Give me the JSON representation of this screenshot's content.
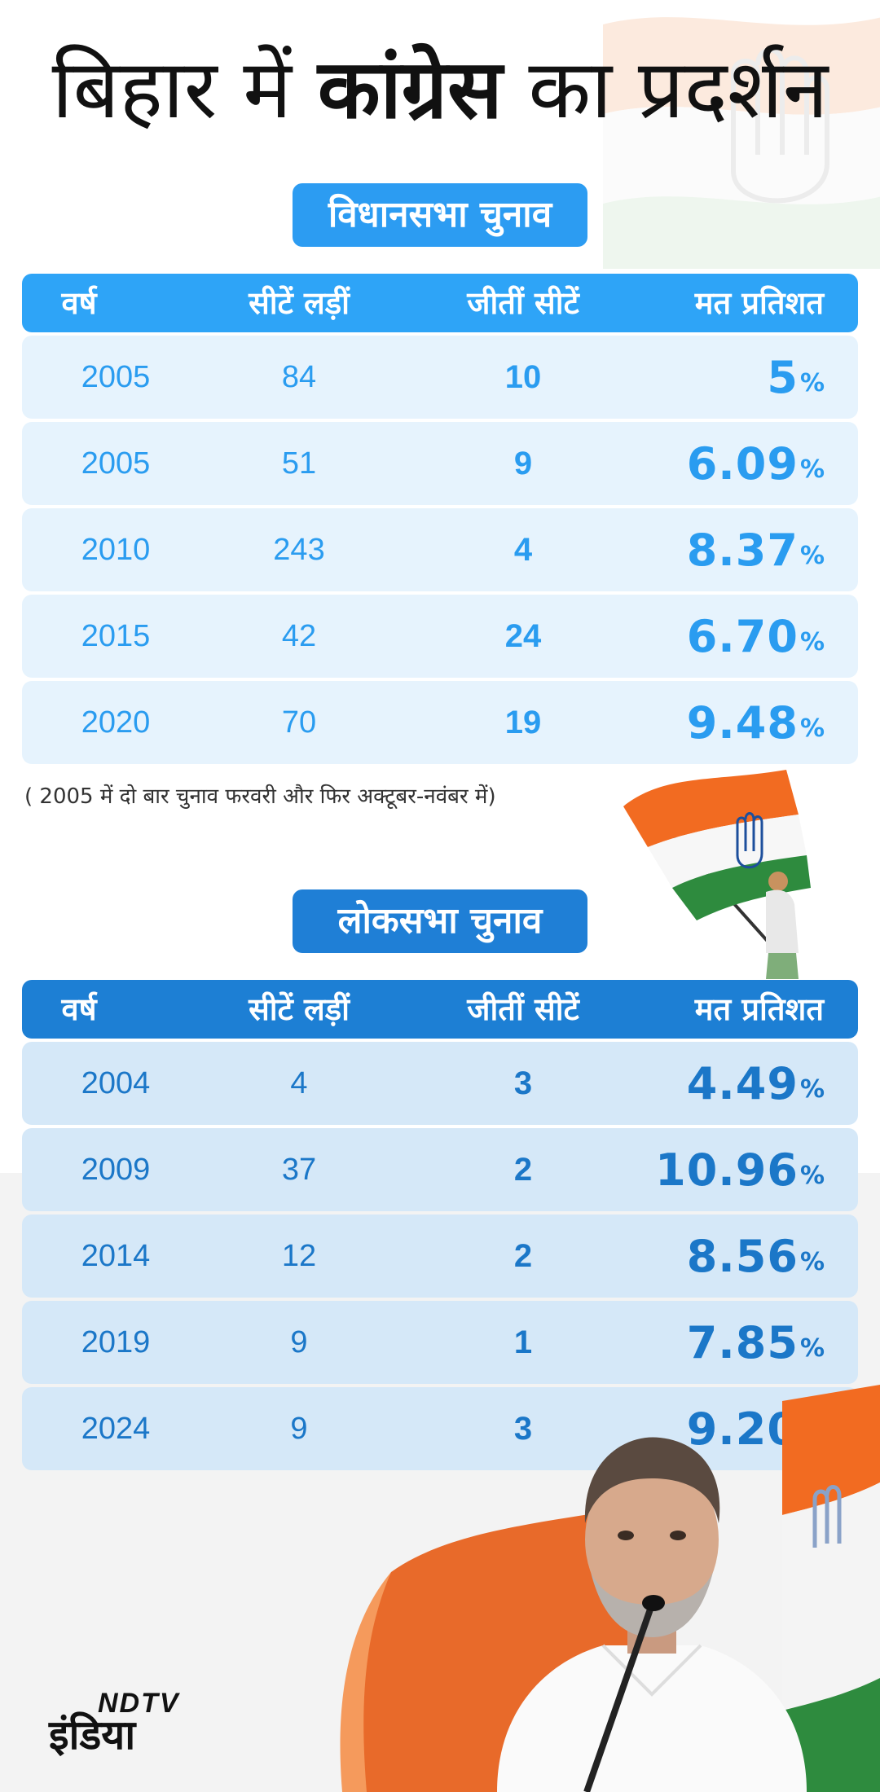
{
  "title": {
    "normal_1": "बिहार में",
    "bold": "कांग्रेस",
    "normal_2": "का प्रदर्शन"
  },
  "chart_data": [
    {
      "type": "table",
      "heading": "विधानसभा चुनाव",
      "columns": [
        "वर्ष",
        "सीटें लड़ीं",
        "जीतीं सीटें",
        "मत प्रतिशत"
      ],
      "rows": [
        {
          "year": "2005",
          "contested": "84",
          "won": "10",
          "vote": "5",
          "unit": "%"
        },
        {
          "year": "2005",
          "contested": "51",
          "won": "9",
          "vote": "6.09",
          "unit": "%"
        },
        {
          "year": "2010",
          "contested": "243",
          "won": "4",
          "vote": "8.37",
          "unit": "%"
        },
        {
          "year": "2015",
          "contested": "42",
          "won": "24",
          "vote": "6.70",
          "unit": "%"
        },
        {
          "year": "2020",
          "contested": "70",
          "won": "19",
          "vote": "9.48",
          "unit": "%"
        }
      ],
      "note": "( 2005 में दो बार चुनाव फरवरी और फिर अक्टूबर-नवंबर में)"
    },
    {
      "type": "table",
      "heading": "लोकसभा चुनाव",
      "columns": [
        "वर्ष",
        "सीटें लड़ीं",
        "जीतीं सीटें",
        "मत प्रतिशत"
      ],
      "rows": [
        {
          "year": "2004",
          "contested": "4",
          "won": "3",
          "vote": "4.49",
          "unit": "%"
        },
        {
          "year": "2009",
          "contested": "37",
          "won": "2",
          "vote": "10.96",
          "unit": "%"
        },
        {
          "year": "2014",
          "contested": "12",
          "won": "2",
          "vote": "8.56",
          "unit": "%"
        },
        {
          "year": "2019",
          "contested": "9",
          "won": "1",
          "vote": "7.85",
          "unit": "%"
        },
        {
          "year": "2024",
          "contested": "9",
          "won": "3",
          "vote": "9.20",
          "unit": "%"
        }
      ]
    }
  ],
  "logo": {
    "top": "NDTV",
    "bottom": "इंडिया"
  },
  "colors": {
    "vidhansabha_accent": "#2ea4f7",
    "loksabha_accent": "#1d7fd4",
    "saffron": "#f26b21",
    "green": "#2e8b3e"
  }
}
